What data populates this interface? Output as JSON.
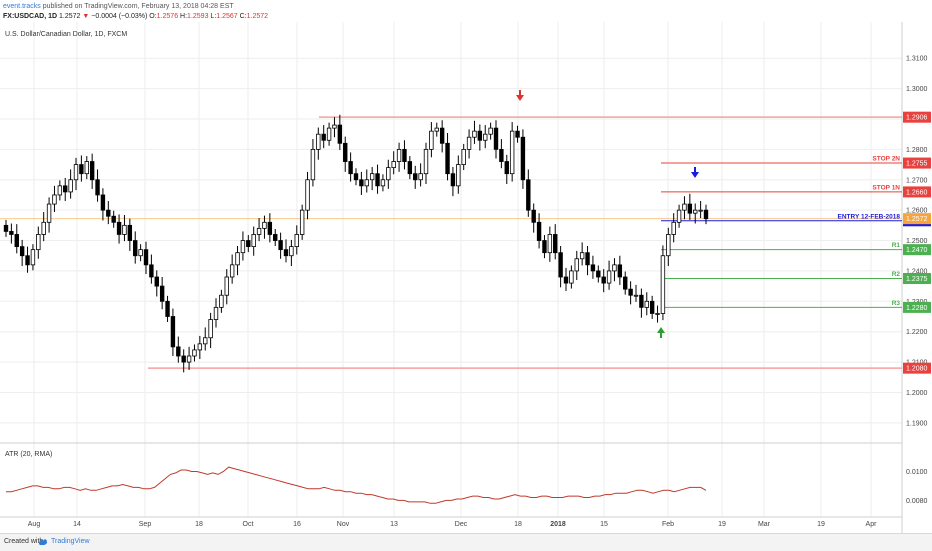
{
  "header": {
    "author": "event.tracks",
    "published": "published on TradingView.com, February 13, 2018 04:28 EST",
    "symbol": "FX:USDCAD, 1D",
    "last": "1.2572",
    "change_arrow": "▼",
    "change": "−0.0004 (−0.03%)",
    "o_label": "O:",
    "o": "1.2576",
    "h_label": "H:",
    "h": "1.2593",
    "l_label": "L:",
    "l": "1.2567",
    "c_label": "C:",
    "c": "1.2572"
  },
  "footer": {
    "created": "Created with",
    "brand": "TradingView"
  },
  "colors": {
    "up": "#ffffff",
    "down": "#000000",
    "wick": "#000000",
    "resistance": "#f4a0a0",
    "resistance_tag": "#e8413e",
    "entry": "#1a1ae0",
    "support": "#4caf50",
    "price_tag": "#f7a43c",
    "atr": "#c0392b",
    "grid": "#eeeeee",
    "axis_text": "#444444"
  },
  "chart_data": [
    {
      "type": "candlestick",
      "title": "U.S. Dollar/Canadian Dollar, 1D, FXCM",
      "x_labels": [
        "Aug",
        "14",
        "Sep",
        "18",
        "Oct",
        "16",
        "Nov",
        "13",
        "Dec",
        "18",
        "2018",
        "15",
        "Feb",
        "19",
        "Mar",
        "19",
        "Apr"
      ],
      "y_ticks": [
        "1.3100",
        "1.3000",
        "1.2900",
        "1.2800",
        "1.2700",
        "1.2600",
        "1.2500",
        "1.2400",
        "1.2300",
        "1.2200",
        "1.2100",
        "1.2000",
        "1.1900"
      ],
      "ylim": [
        1.186,
        1.316
      ],
      "closes": [
        1.253,
        1.252,
        1.248,
        1.245,
        1.242,
        1.247,
        1.252,
        1.256,
        1.262,
        1.265,
        1.268,
        1.266,
        1.27,
        1.275,
        1.272,
        1.276,
        1.27,
        1.265,
        1.26,
        1.258,
        1.256,
        1.252,
        1.255,
        1.25,
        1.245,
        1.247,
        1.242,
        1.238,
        1.235,
        1.23,
        1.225,
        1.215,
        1.212,
        1.21,
        1.212,
        1.214,
        1.216,
        1.218,
        1.224,
        1.228,
        1.232,
        1.238,
        1.242,
        1.246,
        1.25,
        1.248,
        1.252,
        1.254,
        1.256,
        1.252,
        1.25,
        1.247,
        1.245,
        1.248,
        1.252,
        1.26,
        1.27,
        1.28,
        1.285,
        1.283,
        1.287,
        1.288,
        1.282,
        1.276,
        1.272,
        1.27,
        1.268,
        1.27,
        1.272,
        1.268,
        1.27,
        1.274,
        1.276,
        1.28,
        1.276,
        1.272,
        1.27,
        1.272,
        1.28,
        1.286,
        1.287,
        1.282,
        1.272,
        1.268,
        1.275,
        1.28,
        1.284,
        1.286,
        1.283,
        1.285,
        1.287,
        1.28,
        1.276,
        1.272,
        1.286,
        1.284,
        1.27,
        1.26,
        1.256,
        1.25,
        1.246,
        1.252,
        1.246,
        1.238,
        1.236,
        1.24,
        1.244,
        1.246,
        1.242,
        1.24,
        1.238,
        1.236,
        1.24,
        1.242,
        1.238,
        1.234,
        1.232,
        1.232,
        1.228,
        1.23,
        1.226,
        1.226,
        1.245,
        1.252,
        1.256,
        1.26,
        1.262,
        1.259,
        1.26,
        1.26,
        1.2572
      ],
      "resistance_levels": [
        {
          "value": 1.2906,
          "label": "1.2906"
        },
        {
          "value": 1.208,
          "label": "1.2080"
        }
      ],
      "trade_levels": [
        {
          "name": "STOP 2N",
          "value": 1.2755,
          "label": "1.2755",
          "kind": "stop"
        },
        {
          "name": "STOP 1N",
          "value": 1.266,
          "label": "1.2660",
          "kind": "stop"
        },
        {
          "name": "ENTRY 12-FEB-2018",
          "value": 1.2565,
          "label": "1.2565",
          "kind": "entry"
        },
        {
          "name": "R1",
          "value": 1.247,
          "label": "1.2470",
          "kind": "target"
        },
        {
          "name": "R2",
          "value": 1.2375,
          "label": "1.2375",
          "kind": "target"
        },
        {
          "name": "R3",
          "value": 1.228,
          "label": "1.2280",
          "kind": "target"
        }
      ],
      "current_price": {
        "value": 1.2572,
        "label": "1.2572"
      }
    },
    {
      "type": "line",
      "title": "ATR (20, RMA)",
      "y_ticks": [
        "0.0100",
        "0.0080"
      ],
      "ylim": [
        0.0072,
        0.011
      ],
      "values": [
        0.0086,
        0.0086,
        0.0087,
        0.0088,
        0.0089,
        0.009,
        0.009,
        0.0089,
        0.0089,
        0.0088,
        0.0088,
        0.0089,
        0.0089,
        0.0088,
        0.0087,
        0.0088,
        0.0087,
        0.0087,
        0.0088,
        0.0089,
        0.009,
        0.009,
        0.0091,
        0.009,
        0.0089,
        0.0089,
        0.0088,
        0.0088,
        0.0089,
        0.0092,
        0.0095,
        0.0098,
        0.0099,
        0.0101,
        0.0101,
        0.01,
        0.01,
        0.0099,
        0.0098,
        0.0099,
        0.0098,
        0.01,
        0.0103,
        0.0102,
        0.0101,
        0.01,
        0.0099,
        0.0098,
        0.0097,
        0.0096,
        0.0095,
        0.0094,
        0.0093,
        0.0092,
        0.0091,
        0.009,
        0.0089,
        0.0088,
        0.0088,
        0.0088,
        0.0089,
        0.0088,
        0.0087,
        0.0087,
        0.0086,
        0.0086,
        0.0085,
        0.0085,
        0.0084,
        0.0084,
        0.0083,
        0.0082,
        0.0081,
        0.0081,
        0.008,
        0.008,
        0.0079,
        0.0079,
        0.0079,
        0.0079,
        0.0078,
        0.0078,
        0.0079,
        0.008,
        0.008,
        0.0081,
        0.0081,
        0.0082,
        0.0083,
        0.0083,
        0.0082,
        0.0082,
        0.0081,
        0.0081,
        0.0082,
        0.0083,
        0.0084,
        0.0083,
        0.0083,
        0.0082,
        0.0082,
        0.0083,
        0.0083,
        0.0082,
        0.0082,
        0.0082,
        0.0083,
        0.0083,
        0.0083,
        0.0082,
        0.0082,
        0.0083,
        0.0083,
        0.0084,
        0.0084,
        0.0085,
        0.0085,
        0.0085,
        0.0086,
        0.0087,
        0.0087,
        0.0086,
        0.0085,
        0.0086,
        0.0087,
        0.0087,
        0.0086,
        0.0087,
        0.0088,
        0.0089,
        0.0089,
        0.0089,
        0.0087
      ]
    }
  ]
}
